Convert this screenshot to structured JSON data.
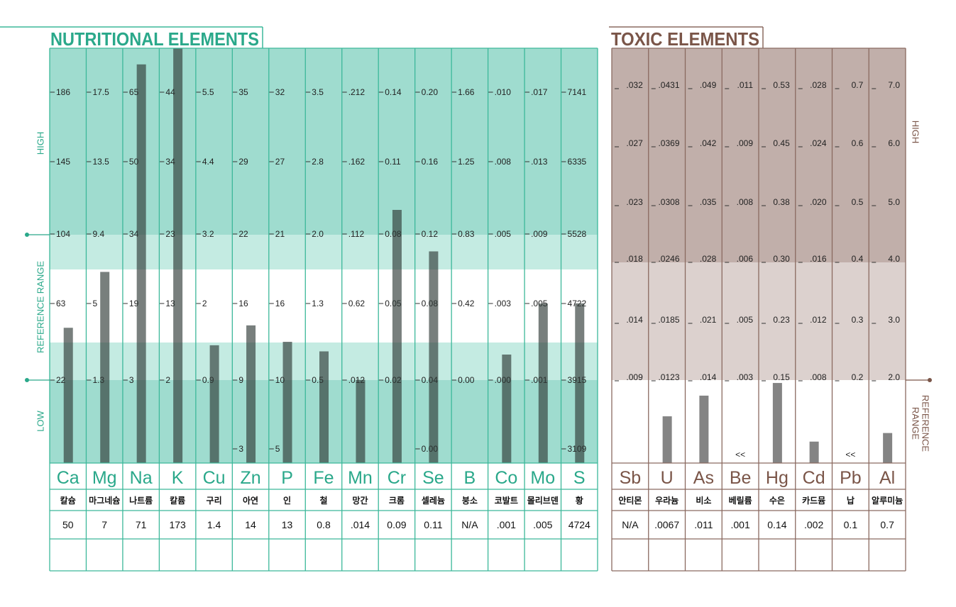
{
  "nutritional": {
    "title": "NUTRITIONAL ELEMENTS",
    "band_labels": [
      "HIGH",
      "REFERENCE RANGE",
      "LOW"
    ],
    "elements": [
      {
        "symbol": "Ca",
        "name": "칼슘",
        "scale": [
          186,
          145,
          104,
          63,
          22
        ],
        "result": 50
      },
      {
        "symbol": "Mg",
        "name": "마그네슘",
        "scale": [
          17.5,
          13.5,
          9.4,
          5,
          1.3
        ],
        "result": 7
      },
      {
        "symbol": "Na",
        "name": "나트륨",
        "scale": [
          65,
          50,
          34,
          19,
          3
        ],
        "result": 71
      },
      {
        "symbol": "K",
        "name": "칼륨",
        "scale": [
          44,
          34,
          23,
          13,
          2
        ],
        "result": 173
      },
      {
        "symbol": "Cu",
        "name": "구리",
        "scale": [
          5.5,
          4.4,
          3.2,
          2,
          0.9
        ],
        "result": 1.4
      },
      {
        "symbol": "Zn",
        "name": "아연",
        "scale": [
          35,
          29,
          22,
          16,
          9
        ],
        "scale_low": 3,
        "result": 14
      },
      {
        "symbol": "P",
        "name": "인",
        "scale": [
          32,
          27,
          21,
          16,
          10
        ],
        "scale_low": 5,
        "result": 13
      },
      {
        "symbol": "Fe",
        "name": "철",
        "scale": [
          3.5,
          2.8,
          {
            "value": 2,
            "label": "2.0"
          },
          1.3,
          0.5
        ],
        "result": 0.8
      },
      {
        "symbol": "Mn",
        "name": "망간",
        "scale": [
          {
            "value": 0.212,
            "label": ".212"
          },
          {
            "value": 0.162,
            "label": ".162"
          },
          {
            "value": 0.112,
            "label": ".112"
          },
          0.62,
          {
            "value": 0.012,
            "label": ".012"
          }
        ],
        "result": 0.014,
        "result_label": ".014"
      },
      {
        "symbol": "Cr",
        "name": "크롬",
        "scale": [
          0.14,
          0.11,
          0.08,
          0.05,
          0.02
        ],
        "result": 0.09
      },
      {
        "symbol": "Se",
        "name": "셀레늄",
        "scale": [
          {
            "value": 0.2,
            "label": "0.20"
          },
          0.16,
          0.12,
          0.08,
          0.04
        ],
        "scale_low": {
          "value": 0,
          "label": "0.00"
        },
        "result": 0.11
      },
      {
        "symbol": "B",
        "name": "붕소",
        "scale": [
          1.66,
          1.25,
          0.83,
          0.42,
          {
            "value": 0,
            "label": "0.00"
          }
        ],
        "result": null,
        "result_label": "N/A"
      },
      {
        "symbol": "Co",
        "name": "코발트",
        "scale": [
          {
            "value": 0.01,
            "label": ".010"
          },
          {
            "value": 0.008,
            "label": ".008"
          },
          {
            "value": 0.005,
            "label": ".005"
          },
          {
            "value": 0.003,
            "label": ".003"
          },
          {
            "value": 0,
            "label": ".000"
          }
        ],
        "result": 0.001,
        "result_label": ".001"
      },
      {
        "symbol": "Mo",
        "name": "몰리브덴",
        "scale": [
          {
            "value": 0.017,
            "label": ".017"
          },
          {
            "value": 0.013,
            "label": ".013"
          },
          {
            "value": 0.009,
            "label": ".009"
          },
          {
            "value": 0.005,
            "label": ".005"
          },
          {
            "value": 0.001,
            "label": ".001"
          }
        ],
        "result": 0.005,
        "result_label": ".005"
      },
      {
        "symbol": "S",
        "name": "황",
        "scale": [
          7141,
          6335,
          5528,
          4722,
          3915
        ],
        "scale_low": 3109,
        "result": 4724
      }
    ]
  },
  "toxic": {
    "title": "TOXIC ELEMENTS",
    "band_labels": [
      "HIGH",
      "REFERENCE",
      "RANGE"
    ],
    "elements": [
      {
        "symbol": "Sb",
        "name": "안티몬",
        "scale": [
          {
            "value": 0.032,
            "label": ".032"
          },
          {
            "value": 0.027,
            "label": ".027"
          },
          {
            "value": 0.023,
            "label": ".023"
          },
          {
            "value": 0.018,
            "label": ".018"
          },
          {
            "value": 0.014,
            "label": ".014"
          },
          {
            "value": 0.009,
            "label": ".009"
          }
        ],
        "result": null,
        "result_label": "N/A"
      },
      {
        "symbol": "U",
        "name": "우라늄",
        "scale": [
          {
            "value": 0.0431,
            "label": ".0431"
          },
          {
            "value": 0.0369,
            "label": ".0369"
          },
          {
            "value": 0.0308,
            "label": ".0308"
          },
          {
            "value": 0.0246,
            "label": ".0246"
          },
          {
            "value": 0.0185,
            "label": ".0185"
          },
          {
            "value": 0.0123,
            "label": ".0123"
          }
        ],
        "result": 0.0067,
        "result_label": ".0067"
      },
      {
        "symbol": "As",
        "name": "비소",
        "scale": [
          {
            "value": 0.049,
            "label": ".049"
          },
          {
            "value": 0.042,
            "label": ".042"
          },
          {
            "value": 0.035,
            "label": ".035"
          },
          {
            "value": 0.028,
            "label": ".028"
          },
          {
            "value": 0.021,
            "label": ".021"
          },
          {
            "value": 0.014,
            "label": ".014"
          }
        ],
        "result": 0.011,
        "result_label": ".011"
      },
      {
        "symbol": "Be",
        "name": "베릴륨",
        "scale": [
          {
            "value": 0.011,
            "label": ".011"
          },
          {
            "value": 0.009,
            "label": ".009"
          },
          {
            "value": 0.008,
            "label": ".008"
          },
          {
            "value": 0.006,
            "label": ".006"
          },
          {
            "value": 0.005,
            "label": ".005"
          },
          {
            "value": 0.003,
            "label": ".003"
          }
        ],
        "result": 0.001,
        "result_label": ".001",
        "marker": "<<"
      },
      {
        "symbol": "Hg",
        "name": "수은",
        "scale": [
          0.53,
          0.45,
          0.38,
          {
            "value": 0.3,
            "label": "0.30"
          },
          0.23,
          0.15
        ],
        "result": 0.14
      },
      {
        "symbol": "Cd",
        "name": "카드뮴",
        "scale": [
          {
            "value": 0.028,
            "label": ".028"
          },
          {
            "value": 0.024,
            "label": ".024"
          },
          {
            "value": 0.02,
            "label": ".020"
          },
          {
            "value": 0.016,
            "label": ".016"
          },
          {
            "value": 0.012,
            "label": ".012"
          },
          {
            "value": 0.008,
            "label": ".008"
          }
        ],
        "result": 0.002,
        "result_label": ".002"
      },
      {
        "symbol": "Pb",
        "name": "납",
        "scale": [
          0.7,
          0.6,
          0.5,
          0.4,
          0.3,
          0.2
        ],
        "result": 0.1,
        "marker": "<<"
      },
      {
        "symbol": "Al",
        "name": "알루미늄",
        "scale": [
          {
            "value": 7,
            "label": "7.0"
          },
          {
            "value": 6,
            "label": "6.0"
          },
          {
            "value": 5,
            "label": "5.0"
          },
          {
            "value": 4,
            "label": "4.0"
          },
          {
            "value": 3,
            "label": "3.0"
          },
          {
            "value": 2,
            "label": "2.0"
          }
        ],
        "result": 0.7
      }
    ]
  }
}
